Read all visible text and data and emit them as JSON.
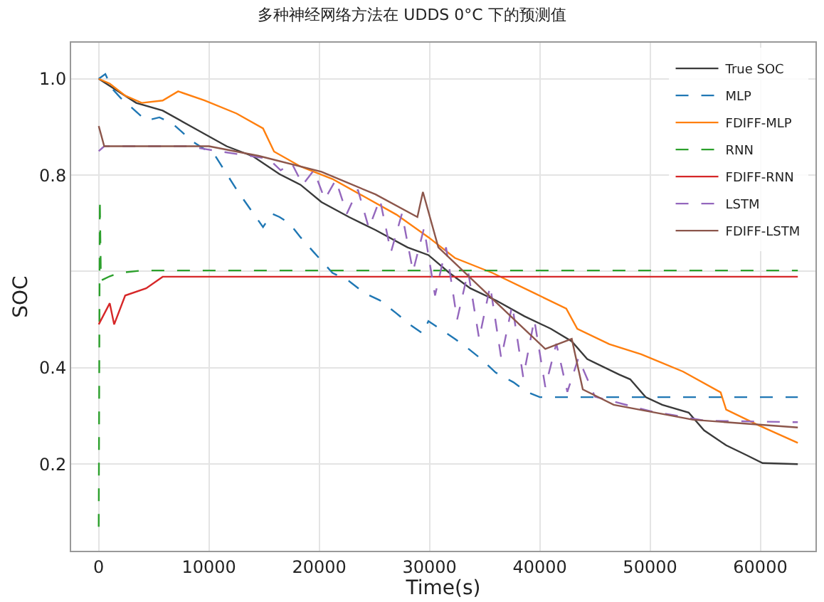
{
  "chart_data": {
    "type": "line",
    "title": "多种神经网络方法在 UDDS 0°C 下的预测值",
    "xlabel": "Time(s)",
    "ylabel": "SOC",
    "xlim": [
      -2500,
      65000
    ],
    "xticks": [
      0,
      10000,
      20000,
      30000,
      40000,
      50000,
      60000
    ],
    "ylim": [
      0.02,
      1.075
    ],
    "yticks": [
      {
        "value": 0.2,
        "label": "0.2"
      },
      {
        "value": 0.4,
        "label": "0.4"
      },
      {
        "value": 0.6,
        "label": null
      },
      {
        "value": 0.8,
        "label": "0.8"
      },
      {
        "value": 1.0,
        "label": "1.0"
      }
    ],
    "grid": true,
    "legend": "top right",
    "marker": "none",
    "series": [
      {
        "name": "True SOC",
        "color": "#3a3a3a",
        "line_style": "solid",
        "x": [
          0,
          3400,
          5800,
          8700,
          11600,
          14000,
          16400,
          18300,
          20200,
          22700,
          25100,
          28000,
          29900,
          31800,
          33700,
          36100,
          38600,
          41000,
          42900,
          44300,
          47200,
          48200,
          49600,
          51100,
          53500,
          54900,
          56900,
          58800,
          60200,
          63400
        ],
        "values": [
          1.0,
          0.95,
          0.934,
          0.897,
          0.86,
          0.839,
          0.802,
          0.78,
          0.744,
          0.713,
          0.686,
          0.65,
          0.634,
          0.597,
          0.565,
          0.539,
          0.507,
          0.481,
          0.455,
          0.418,
          0.386,
          0.376,
          0.339,
          0.323,
          0.307,
          0.27,
          0.239,
          0.218,
          0.202,
          0.2
        ]
      },
      {
        "name": "MLP",
        "color": "#1f77b4",
        "line_style": "dashed",
        "x": [
          0,
          600,
          1200,
          2000,
          3000,
          4300,
          5500,
          6700,
          8500,
          10600,
          12500,
          14900,
          15700,
          16400,
          17300,
          18300,
          19500,
          21200,
          22700,
          24100,
          25500,
          27000,
          28200,
          29400,
          29900,
          31000,
          32300,
          33500,
          34700,
          36000,
          37600,
          38800,
          40000,
          50000,
          63400
        ],
        "values": [
          1.0,
          1.01,
          0.98,
          0.96,
          0.94,
          0.913,
          0.92,
          0.907,
          0.87,
          0.839,
          0.77,
          0.692,
          0.72,
          0.713,
          0.7,
          0.671,
          0.64,
          0.597,
          0.58,
          0.555,
          0.54,
          0.513,
          0.49,
          0.471,
          0.497,
          0.48,
          0.46,
          0.44,
          0.418,
          0.39,
          0.37,
          0.35,
          0.339,
          0.339,
          0.339
        ]
      },
      {
        "name": "FDIFF-MLP",
        "color": "#ff7f0e",
        "line_style": "solid",
        "x": [
          0,
          1000,
          2400,
          3900,
          5800,
          7200,
          9600,
          12500,
          14900,
          15900,
          18300,
          21200,
          24100,
          27000,
          29900,
          32300,
          35700,
          39500,
          42400,
          43400,
          46300,
          49200,
          53000,
          56400,
          56900,
          59800,
          63400
        ],
        "values": [
          1.0,
          0.99,
          0.965,
          0.95,
          0.955,
          0.974,
          0.955,
          0.928,
          0.897,
          0.849,
          0.818,
          0.792,
          0.755,
          0.718,
          0.671,
          0.628,
          0.597,
          0.555,
          0.523,
          0.481,
          0.449,
          0.428,
          0.392,
          0.349,
          0.313,
          0.281,
          0.244
        ]
      },
      {
        "name": "RNN",
        "color": "#2ca02c",
        "line_style": "dashed",
        "x": [
          0,
          100,
          200,
          1000,
          1900,
          3900,
          63400
        ],
        "values": [
          0.07,
          0.75,
          0.581,
          0.59,
          0.597,
          0.602,
          0.602
        ]
      },
      {
        "name": "FDIFF-RNN",
        "color": "#d62728",
        "line_style": "solid",
        "x": [
          0,
          1000,
          1400,
          2400,
          4300,
          5800,
          63400
        ],
        "values": [
          0.49,
          0.534,
          0.49,
          0.55,
          0.565,
          0.589,
          0.589
        ]
      },
      {
        "name": "LSTM",
        "color": "#9467bd",
        "line_style": "dashed",
        "x": [
          0,
          500,
          8000,
          12500,
          15400,
          16500,
          17500,
          18500,
          19500,
          20500,
          21500,
          22500,
          23500,
          24500,
          25500,
          26500,
          27500,
          28500,
          29500,
          30500,
          31500,
          32500,
          33500,
          34500,
          35500,
          36500,
          37500,
          38500,
          39500,
          40500,
          41500,
          42500,
          43500,
          45000,
          50000,
          55000,
          63400
        ],
        "values": [
          0.85,
          0.86,
          0.86,
          0.844,
          0.834,
          0.81,
          0.825,
          0.78,
          0.81,
          0.75,
          0.79,
          0.72,
          0.77,
          0.69,
          0.75,
          0.64,
          0.72,
          0.6,
          0.69,
          0.55,
          0.65,
          0.5,
          0.6,
          0.46,
          0.57,
          0.42,
          0.53,
          0.38,
          0.5,
          0.36,
          0.45,
          0.35,
          0.42,
          0.34,
          0.31,
          0.29,
          0.287
        ]
      },
      {
        "name": "FDIFF-LSTM",
        "color": "#8c564b",
        "line_style": "solid",
        "x": [
          0,
          500,
          10000,
          14500,
          20200,
          25100,
          28900,
          29400,
          30800,
          34700,
          37600,
          40500,
          42900,
          43900,
          46700,
          51600,
          53900,
          63400
        ],
        "values": [
          0.902,
          0.86,
          0.86,
          0.84,
          0.807,
          0.76,
          0.713,
          0.765,
          0.65,
          0.565,
          0.502,
          0.439,
          0.46,
          0.355,
          0.323,
          0.302,
          0.292,
          0.276
        ]
      }
    ]
  }
}
